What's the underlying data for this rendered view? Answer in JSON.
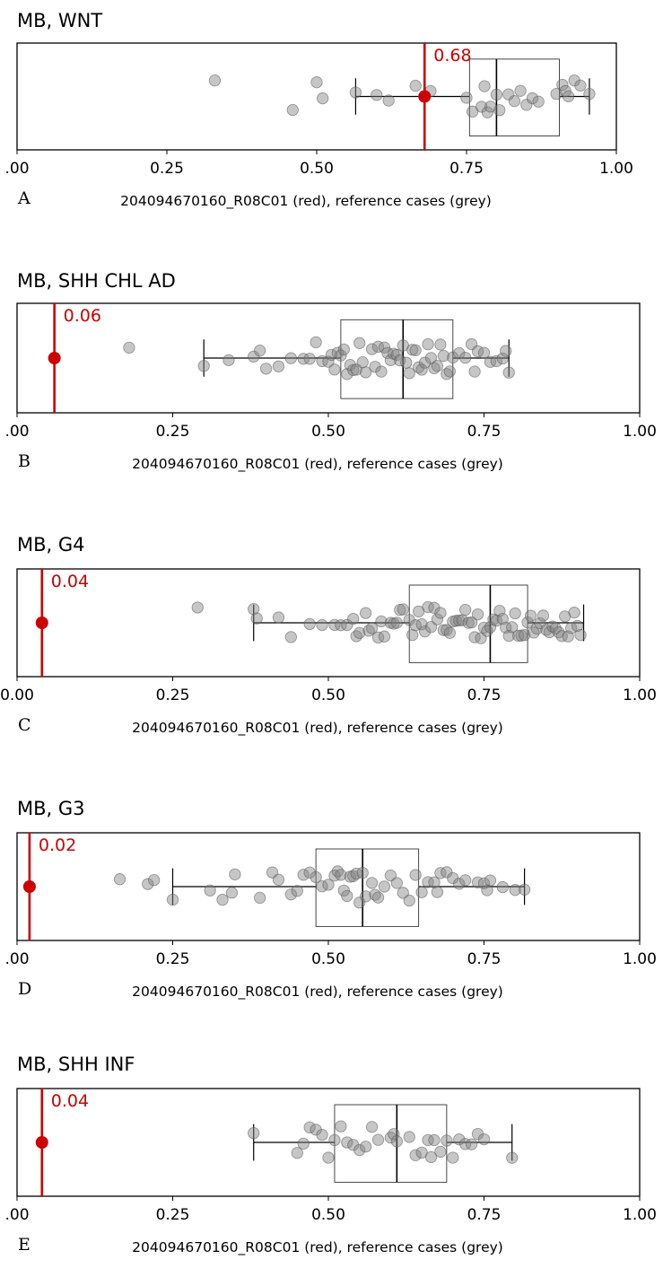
{
  "colors": {
    "sample": "#cc0000",
    "reference": "#808080"
  },
  "chart_data": [
    {
      "type": "scatter",
      "letter": "A",
      "title": "MB, WNT",
      "xlabel": "204094670160_R08C01 (red), reference cases (grey)",
      "xlim": [
        0,
        1
      ],
      "ticks": [
        ".00",
        "0.25",
        "0.50",
        "0.75",
        "1.00"
      ],
      "sample_value": 0.68,
      "sample_label": "0.68",
      "box": {
        "whisker_low": 0.565,
        "q1": 0.755,
        "median": 0.8,
        "q3": 0.905,
        "whisker_high": 0.955
      },
      "reference": [
        0.33,
        0.46,
        0.5,
        0.51,
        0.565,
        0.6,
        0.62,
        0.665,
        0.69,
        0.75,
        0.76,
        0.775,
        0.78,
        0.785,
        0.79,
        0.8,
        0.805,
        0.82,
        0.83,
        0.84,
        0.85,
        0.86,
        0.87,
        0.9,
        0.91,
        0.915,
        0.92,
        0.93,
        0.94,
        0.955
      ]
    },
    {
      "type": "scatter",
      "letter": "B",
      "title": "MB, SHH CHL AD",
      "xlabel": "204094670160_R08C01 (red), reference cases (grey)",
      "xlim": [
        0,
        1
      ],
      "ticks": [
        ".00",
        "0.25",
        "0.50",
        "0.75",
        "1.00"
      ],
      "sample_value": 0.06,
      "sample_label": "0.06",
      "box": {
        "whisker_low": 0.3,
        "q1": 0.52,
        "median": 0.62,
        "q3": 0.7,
        "whisker_high": 0.79
      },
      "reference": [
        0.18,
        0.3,
        0.34,
        0.38,
        0.39,
        0.4,
        0.42,
        0.44,
        0.46,
        0.47,
        0.48,
        0.49,
        0.5,
        0.505,
        0.51,
        0.515,
        0.52,
        0.525,
        0.53,
        0.535,
        0.54,
        0.545,
        0.55,
        0.555,
        0.56,
        0.57,
        0.575,
        0.58,
        0.585,
        0.59,
        0.595,
        0.6,
        0.605,
        0.61,
        0.615,
        0.62,
        0.625,
        0.63,
        0.635,
        0.64,
        0.645,
        0.65,
        0.655,
        0.66,
        0.665,
        0.67,
        0.675,
        0.68,
        0.685,
        0.69,
        0.695,
        0.7,
        0.71,
        0.72,
        0.73,
        0.735,
        0.74,
        0.75,
        0.76,
        0.77,
        0.78,
        0.785,
        0.79
      ]
    },
    {
      "type": "scatter",
      "letter": "C",
      "title": "MB, G4",
      "xlabel": "204094670160_R08C01 (red), reference cases (grey)",
      "xlim": [
        0,
        1
      ],
      "ticks": [
        "0.00",
        "0.25",
        "0.50",
        "0.75",
        "1.00"
      ],
      "sample_value": 0.04,
      "sample_label": "0.04",
      "box": {
        "whisker_low": 0.38,
        "q1": 0.63,
        "median": 0.76,
        "q3": 0.82,
        "whisker_high": 0.91
      },
      "reference": [
        0.29,
        0.38,
        0.385,
        0.42,
        0.44,
        0.47,
        0.49,
        0.51,
        0.52,
        0.53,
        0.54,
        0.545,
        0.55,
        0.56,
        0.565,
        0.57,
        0.58,
        0.585,
        0.59,
        0.6,
        0.605,
        0.61,
        0.615,
        0.62,
        0.63,
        0.635,
        0.64,
        0.645,
        0.65,
        0.655,
        0.66,
        0.665,
        0.67,
        0.675,
        0.68,
        0.685,
        0.69,
        0.695,
        0.7,
        0.705,
        0.71,
        0.715,
        0.72,
        0.725,
        0.73,
        0.735,
        0.74,
        0.745,
        0.75,
        0.755,
        0.76,
        0.765,
        0.77,
        0.775,
        0.78,
        0.785,
        0.79,
        0.795,
        0.8,
        0.805,
        0.81,
        0.815,
        0.82,
        0.825,
        0.83,
        0.835,
        0.84,
        0.845,
        0.85,
        0.855,
        0.86,
        0.865,
        0.87,
        0.875,
        0.88,
        0.885,
        0.89,
        0.895,
        0.9,
        0.905
      ]
    },
    {
      "type": "scatter",
      "letter": "D",
      "title": "MB, G3",
      "xlabel": "204094670160_R08C01 (red), reference cases (grey)",
      "xlim": [
        0,
        1
      ],
      "ticks": [
        ".00",
        "0.25",
        "0.50",
        "0.75",
        "1.00"
      ],
      "sample_value": 0.02,
      "sample_label": "0.02",
      "box": {
        "whisker_low": 0.25,
        "q1": 0.48,
        "median": 0.555,
        "q3": 0.645,
        "whisker_high": 0.815
      },
      "reference": [
        0.165,
        0.21,
        0.22,
        0.25,
        0.31,
        0.33,
        0.345,
        0.35,
        0.39,
        0.41,
        0.42,
        0.44,
        0.45,
        0.46,
        0.47,
        0.48,
        0.49,
        0.5,
        0.51,
        0.515,
        0.52,
        0.525,
        0.53,
        0.535,
        0.54,
        0.545,
        0.55,
        0.555,
        0.56,
        0.57,
        0.575,
        0.58,
        0.59,
        0.6,
        0.61,
        0.62,
        0.63,
        0.64,
        0.65,
        0.66,
        0.67,
        0.675,
        0.68,
        0.69,
        0.7,
        0.71,
        0.72,
        0.74,
        0.75,
        0.755,
        0.76,
        0.78,
        0.8,
        0.815
      ]
    },
    {
      "type": "scatter",
      "letter": "E",
      "title": "MB, SHH INF",
      "xlabel": "204094670160_R08C01 (red), reference cases (grey)",
      "xlim": [
        0,
        1
      ],
      "ticks": [
        ".00",
        "0.25",
        "0.50",
        "0.75",
        "1.00"
      ],
      "sample_value": 0.04,
      "sample_label": "0.04",
      "box": {
        "whisker_low": 0.38,
        "q1": 0.51,
        "median": 0.61,
        "q3": 0.69,
        "whisker_high": 0.795
      },
      "reference": [
        0.38,
        0.45,
        0.46,
        0.47,
        0.48,
        0.49,
        0.5,
        0.51,
        0.52,
        0.53,
        0.54,
        0.55,
        0.56,
        0.57,
        0.58,
        0.6,
        0.605,
        0.61,
        0.63,
        0.64,
        0.65,
        0.66,
        0.665,
        0.67,
        0.68,
        0.69,
        0.7,
        0.71,
        0.72,
        0.73,
        0.74,
        0.75,
        0.795
      ]
    }
  ]
}
